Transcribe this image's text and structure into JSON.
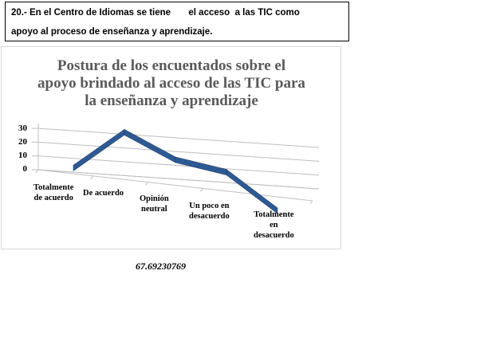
{
  "question": {
    "line1": "20.- En el Centro de Idiomas se tiene       el acceso  a las TIC como",
    "line2": "apoyo al proceso de enseñanza y aprendizaje."
  },
  "chart_data": {
    "type": "line",
    "title_lines": [
      "Postura de los encuentados sobre el",
      "apoyo brindado al acceso de las TIC para",
      "la enseñanza y aprendizaje"
    ],
    "categories": [
      "Totalmente\nde acuerdo",
      "De acuerdo",
      "Opinión\nneutral",
      "Un poco en\ndesacuerdo",
      "Totalmente\nen\ndesacuerdo"
    ],
    "values": [
      1,
      30,
      13,
      7,
      -18
    ],
    "y_ticks": [
      "0",
      "10",
      "20",
      "30"
    ],
    "ylim": [
      0,
      30
    ],
    "grid": true,
    "legend": "none",
    "style": "3d-line",
    "line_color": "#2e5a94"
  },
  "footer": {
    "value": "67.69230769"
  }
}
